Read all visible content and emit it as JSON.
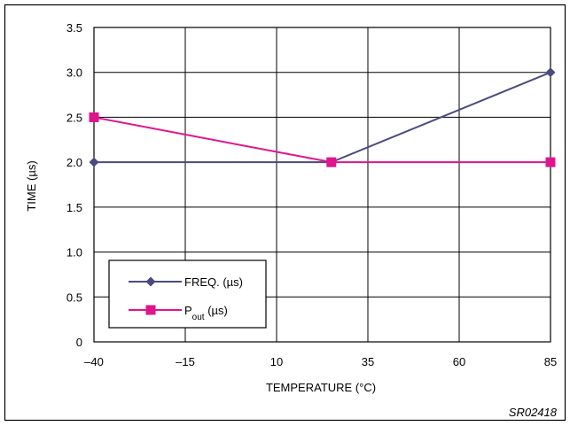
{
  "chart_data": {
    "type": "line",
    "xlabel": "TEMPERATURE (°C)",
    "ylabel": "TIME (µs)",
    "x_ticks": [
      -40,
      -15,
      10,
      35,
      60,
      85
    ],
    "x_tick_labels": [
      "–40",
      "–15",
      "10",
      "35",
      "60",
      "85"
    ],
    "y_ticks": [
      0,
      0.5,
      1.0,
      1.5,
      2.0,
      2.5,
      3.0,
      3.5
    ],
    "y_tick_labels": [
      "0",
      "0.5",
      "1.0",
      "1.5",
      "2.0",
      "2.5",
      "3.0",
      "3.5"
    ],
    "xlim": [
      -40,
      85
    ],
    "ylim": [
      0,
      3.5
    ],
    "grid": true,
    "legend_position": "bottom-left",
    "series": [
      {
        "name": "FREQ. (µs)",
        "legend_main": "FREQ. (µs)",
        "legend_sub": "",
        "legend_after": "",
        "color": "#4a4a80",
        "marker": "diamond",
        "x": [
          -40,
          25,
          85
        ],
        "y": [
          2.0,
          2.0,
          3.0
        ]
      },
      {
        "name": "Pout (µs)",
        "legend_main": "P",
        "legend_sub": "out",
        "legend_after": " (µs)",
        "color": "#e0148c",
        "marker": "square",
        "x": [
          -40,
          25,
          85
        ],
        "y": [
          2.5,
          2.0,
          2.0
        ]
      }
    ]
  },
  "footer": {
    "code": "SR02418"
  }
}
